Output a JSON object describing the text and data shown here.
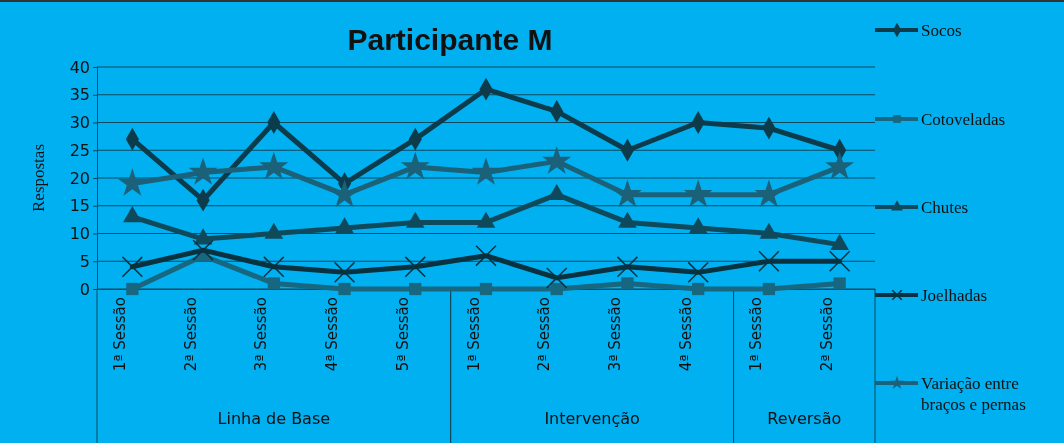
{
  "chart_data": {
    "type": "line",
    "title": "Participante M",
    "ylabel": "Respostas",
    "categories": [
      "1ª Sessão",
      "2ª Sessão",
      "3ª Sessão",
      "4ª Sessão",
      "5ª Sessão",
      "1ª Sessão",
      "2ª Sessão",
      "3ª Sessão",
      "4ª Sessão",
      "1ª Sessão",
      "2ª Sessão"
    ],
    "annotations": [
      "Linha de Base",
      "Intervenção",
      "Reversão"
    ],
    "ylim": [
      0,
      40
    ],
    "yticks": [
      0,
      5,
      10,
      15,
      20,
      25,
      30,
      35,
      40
    ],
    "grid": "y",
    "legend": "right",
    "series": [
      {
        "name": "Socos",
        "color": "#0c3c4c",
        "marker": "diamond",
        "values": [
          27,
          16,
          30,
          19,
          27,
          36,
          32,
          25,
          30,
          29,
          25
        ]
      },
      {
        "name": "Cotoveladas",
        "color": "#16677f",
        "marker": "square",
        "values": [
          0,
          6,
          1,
          0,
          0,
          0,
          0,
          1,
          0,
          0,
          1
        ]
      },
      {
        "name": "Chutes",
        "color": "#0f4a5c",
        "marker": "triangle",
        "values": [
          13,
          9,
          10,
          11,
          12,
          12,
          17,
          12,
          11,
          10,
          8
        ]
      },
      {
        "name": "Joelhadas",
        "color": "#08323f",
        "marker": "cross",
        "values": [
          4,
          7,
          4,
          3,
          4,
          6,
          2,
          4,
          3,
          5,
          5
        ]
      },
      {
        "name": "Variação entre braços e pernas",
        "color": "#1a6179",
        "marker": "star",
        "values": [
          19,
          21,
          22,
          17,
          22,
          21,
          23,
          17,
          17,
          17,
          22
        ]
      }
    ]
  }
}
